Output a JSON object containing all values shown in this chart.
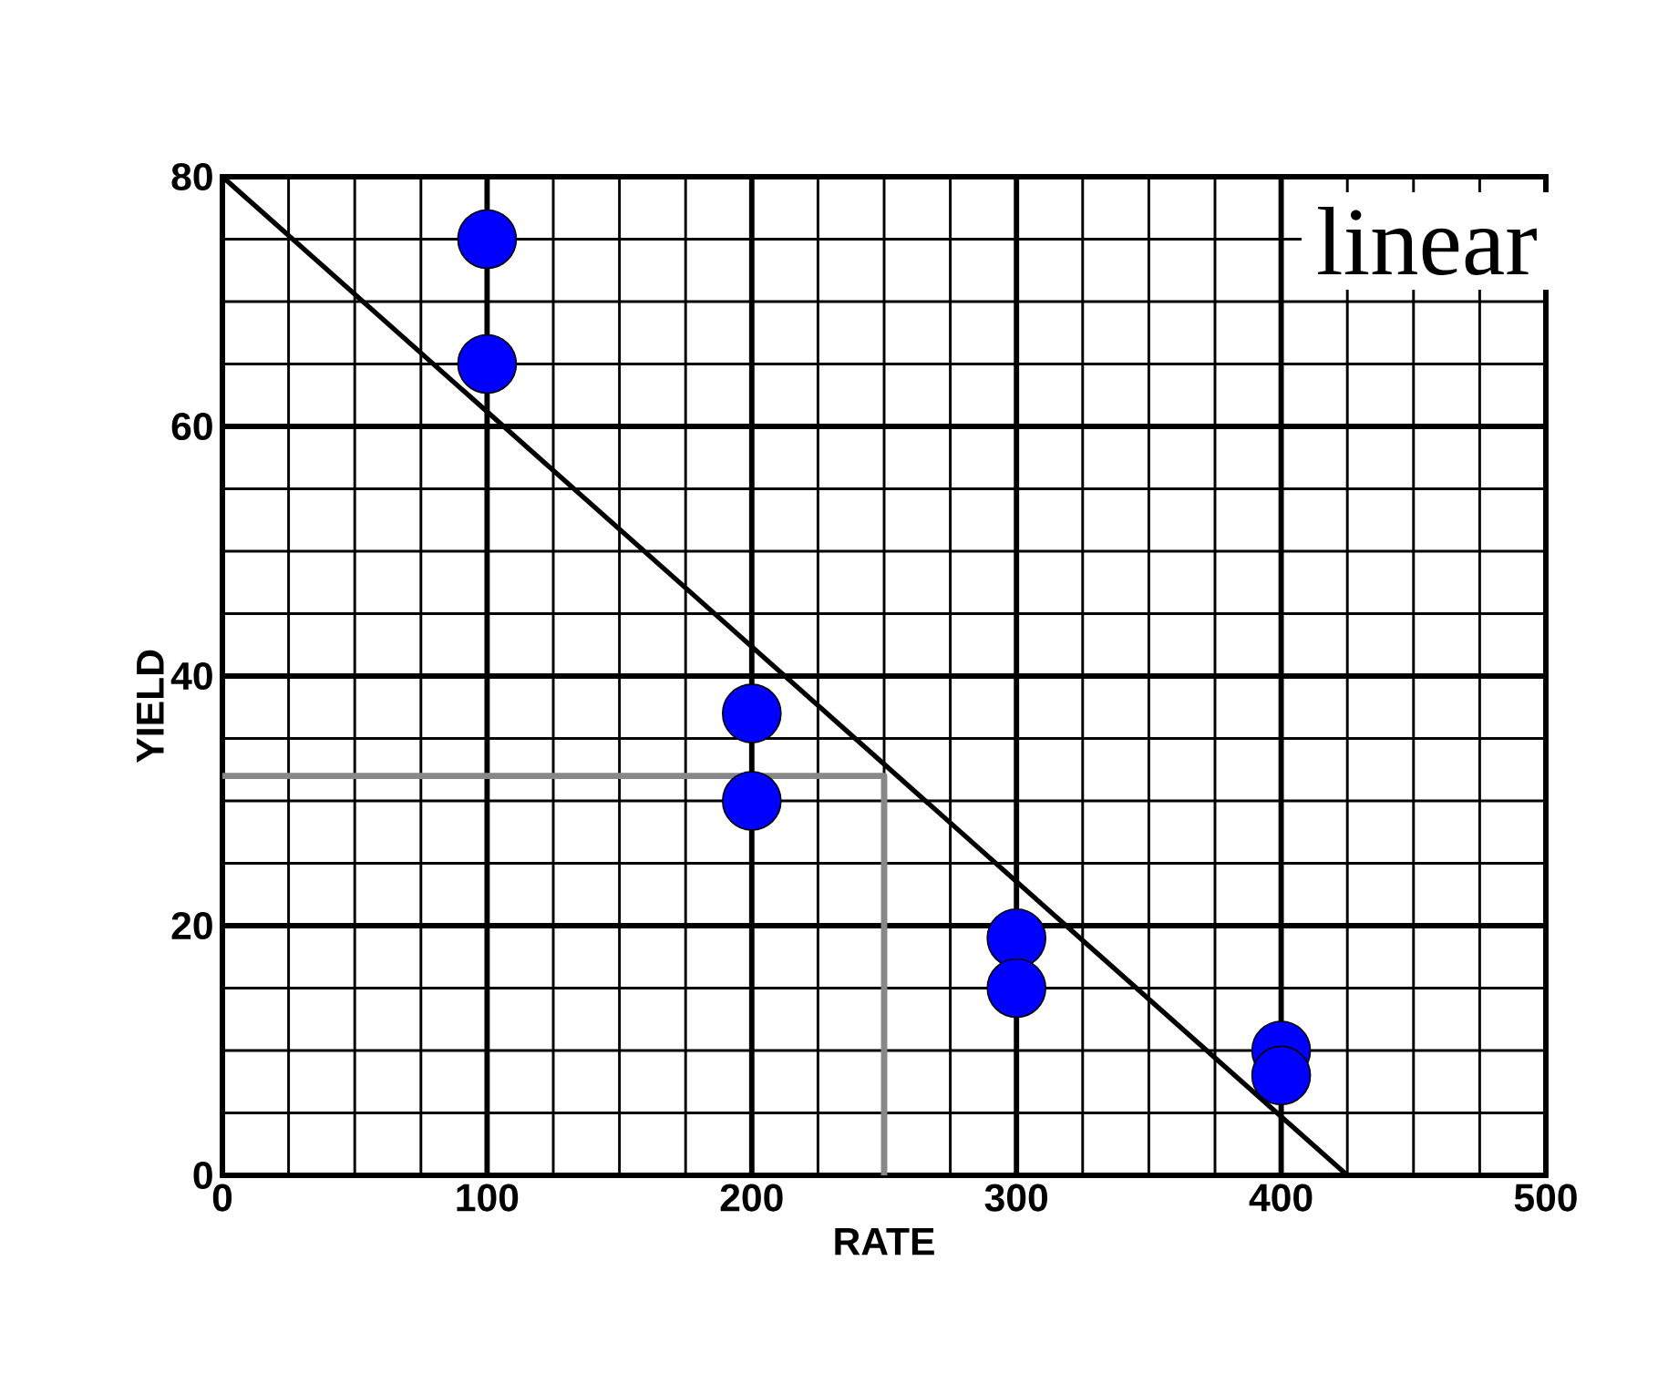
{
  "chart_data": {
    "type": "scatter",
    "xlabel": "RATE",
    "ylabel": "YIELD",
    "xlim": [
      0,
      500
    ],
    "ylim": [
      0,
      80
    ],
    "xticks": [
      0,
      100,
      200,
      300,
      400,
      500
    ],
    "yticks": [
      0,
      20,
      40,
      60,
      80
    ],
    "grid": true,
    "annotations": [
      "linear"
    ],
    "series": [
      {
        "color": "#0000ff",
        "marker": "circle",
        "x": [
          100,
          100,
          200,
          200,
          300,
          300,
          400,
          400
        ],
        "values": [
          75,
          65,
          37,
          30,
          19,
          15,
          10,
          8
        ]
      },
      {
        "type": "line",
        "color": "#000000",
        "marker": "none",
        "x": [
          0,
          425
        ],
        "values": [
          80,
          0
        ]
      },
      {
        "type": "line",
        "color": "#888888",
        "marker": "none",
        "x": [
          0,
          250,
          250
        ],
        "values": [
          32,
          32,
          0
        ]
      }
    ]
  }
}
